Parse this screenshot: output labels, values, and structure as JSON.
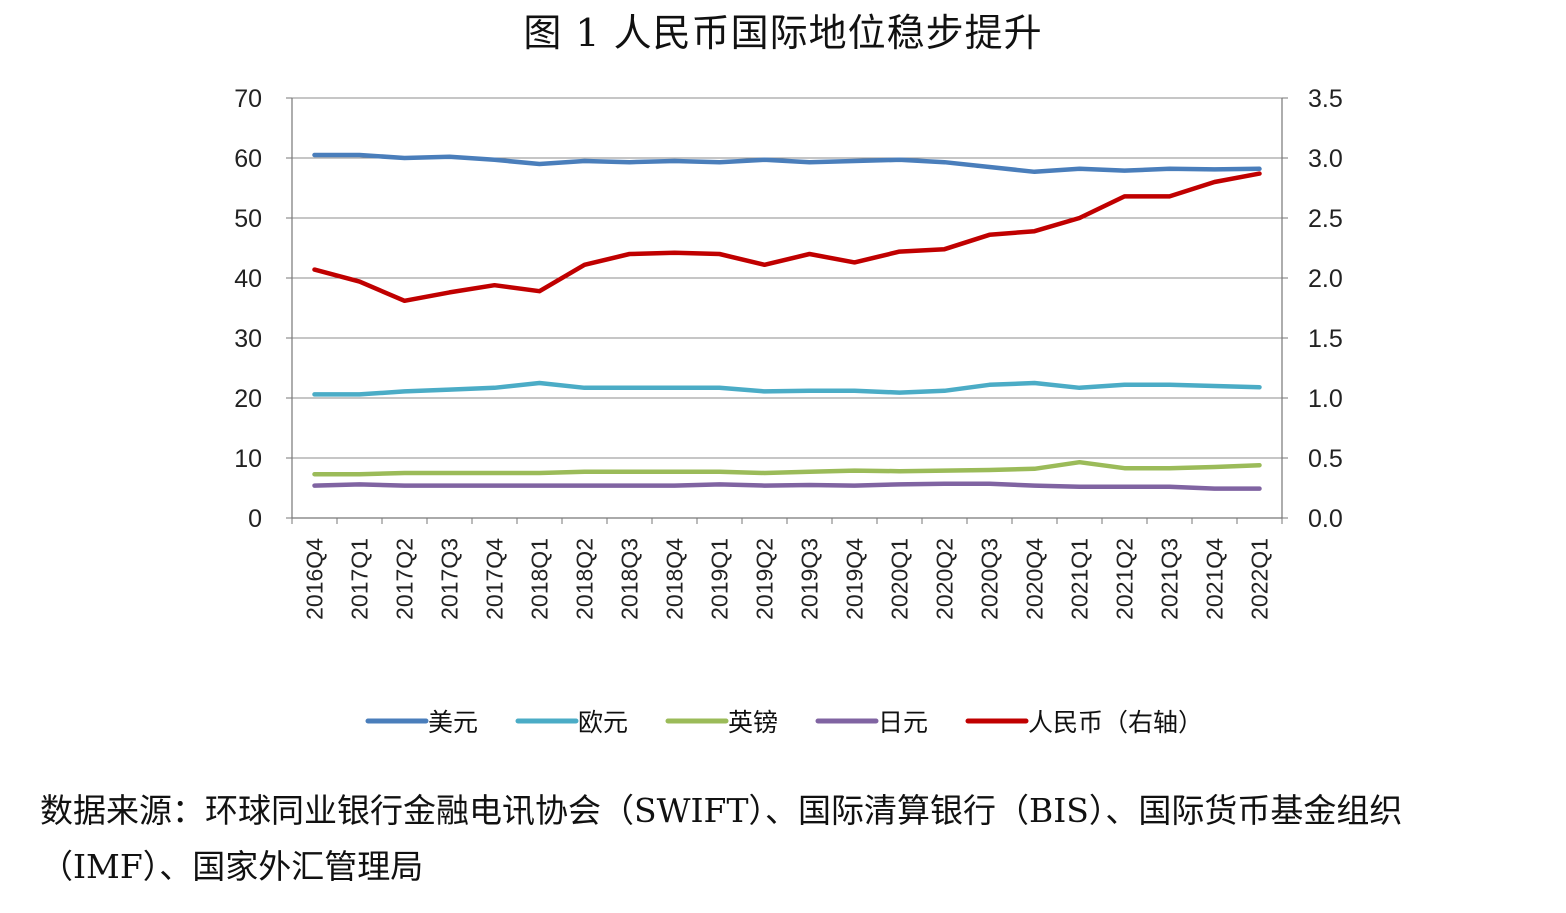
{
  "title": "图 1 人民币国际地位稳步提升",
  "source_note": "数据来源：环球同业银行金融电讯协会（SWIFT）、国际清算银行（BIS）、国际货币基金组织（IMF）、国家外汇管理局",
  "chart_data": {
    "type": "line",
    "title": "图 1 人民币国际地位稳步提升",
    "categories": [
      "2016Q4",
      "2017Q1",
      "2017Q2",
      "2017Q3",
      "2017Q4",
      "2018Q1",
      "2018Q2",
      "2018Q3",
      "2018Q4",
      "2019Q1",
      "2019Q2",
      "2019Q3",
      "2019Q4",
      "2020Q1",
      "2020Q2",
      "2020Q3",
      "2020Q4",
      "2021Q1",
      "2021Q2",
      "2021Q3",
      "2021Q4",
      "2022Q1"
    ],
    "y_left": {
      "ylim": [
        0,
        70
      ],
      "ticks": [
        "0",
        "10",
        "20",
        "30",
        "40",
        "50",
        "60",
        "70"
      ]
    },
    "y_right": {
      "ylim": [
        0,
        3.5
      ],
      "ticks": [
        "0.0",
        "0.5",
        "1.0",
        "1.5",
        "2.0",
        "2.5",
        "3.0",
        "3.5"
      ]
    },
    "grid": "horizontal",
    "legend_position": "bottom",
    "series": [
      {
        "name": "美元",
        "axis": "left",
        "color": "#4a7ebb",
        "values": [
          60.5,
          60.5,
          60.0,
          60.2,
          59.7,
          59.0,
          59.5,
          59.3,
          59.5,
          59.3,
          59.7,
          59.3,
          59.5,
          59.7,
          59.3,
          58.5,
          57.7,
          58.2,
          57.9,
          58.2,
          58.1,
          58.2
        ]
      },
      {
        "name": "欧元",
        "axis": "left",
        "color": "#4bacc6",
        "values": [
          20.6,
          20.6,
          21.1,
          21.4,
          21.7,
          22.5,
          21.7,
          21.7,
          21.7,
          21.7,
          21.1,
          21.2,
          21.2,
          20.9,
          21.2,
          22.2,
          22.5,
          21.7,
          22.2,
          22.2,
          22.0,
          21.8
        ]
      },
      {
        "name": "英镑",
        "axis": "left",
        "color": "#9bbb59",
        "values": [
          7.3,
          7.3,
          7.5,
          7.5,
          7.5,
          7.5,
          7.7,
          7.7,
          7.7,
          7.7,
          7.5,
          7.7,
          7.9,
          7.8,
          7.9,
          8.0,
          8.2,
          9.3,
          8.3,
          8.3,
          8.5,
          8.8
        ]
      },
      {
        "name": "日元",
        "axis": "left",
        "color": "#8064a2",
        "values": [
          5.4,
          5.6,
          5.4,
          5.4,
          5.4,
          5.4,
          5.4,
          5.4,
          5.4,
          5.6,
          5.4,
          5.5,
          5.4,
          5.6,
          5.7,
          5.7,
          5.4,
          5.2,
          5.2,
          5.2,
          4.9,
          4.9
        ]
      },
      {
        "name": "人民币（右轴）",
        "axis": "right",
        "color": "#c00000",
        "values": [
          2.07,
          1.97,
          1.81,
          1.88,
          1.94,
          1.89,
          2.11,
          2.2,
          2.21,
          2.2,
          2.11,
          2.2,
          2.13,
          2.22,
          2.24,
          2.36,
          2.39,
          2.5,
          2.68,
          2.68,
          2.8,
          2.87
        ]
      }
    ]
  }
}
